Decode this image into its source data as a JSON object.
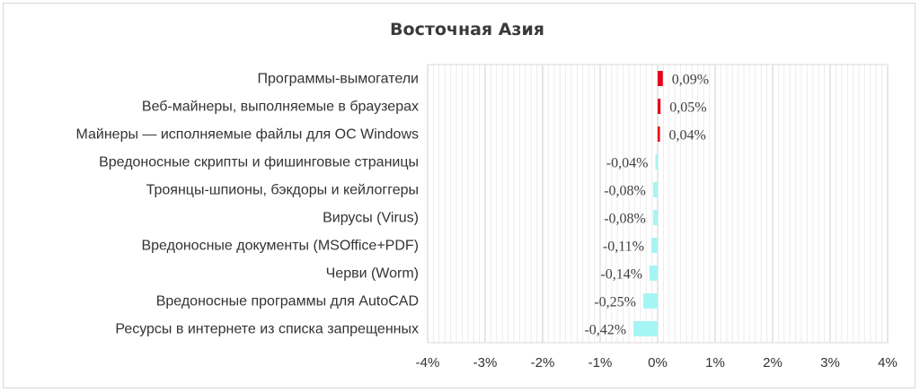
{
  "chart_data": {
    "type": "bar",
    "orientation": "horizontal",
    "title": "Восточная Азия",
    "xlabel": "",
    "ylabel": "",
    "xlim": [
      -4,
      4
    ],
    "x_ticks": [
      "-4%",
      "-3%",
      "-2%",
      "-1%",
      "0%",
      "1%",
      "2%",
      "3%",
      "4%"
    ],
    "grid": true,
    "categories": [
      "Программы-вымогатели",
      "Веб-майнеры, выполняемые в браузерах",
      "Майнеры — исполняемые файлы для ОС Windows",
      "Вредоносные скрипты и фишинговые страницы",
      "Троянцы-шпионы, бэкдоры и кейлоггеры",
      "Вирусы (Virus)",
      "Вредоносные документы (MSOffice+PDF)",
      "Черви (Worm)",
      "Вредоносные программы для AutoCAD",
      "Ресурсы в интернете из списка запрещенных"
    ],
    "values": [
      0.09,
      0.05,
      0.04,
      -0.04,
      -0.08,
      -0.08,
      -0.11,
      -0.14,
      -0.25,
      -0.42
    ],
    "labels": [
      "0,09%",
      "0,05%",
      "0,04%",
      "-0,04%",
      "-0,08%",
      "-0,08%",
      "-0,11%",
      "-0,14%",
      "-0,25%",
      "-0,42%"
    ],
    "colors": {
      "positive": "#e8001c",
      "negative": "#a6f5f5",
      "grid": "#d9d9d9"
    }
  }
}
